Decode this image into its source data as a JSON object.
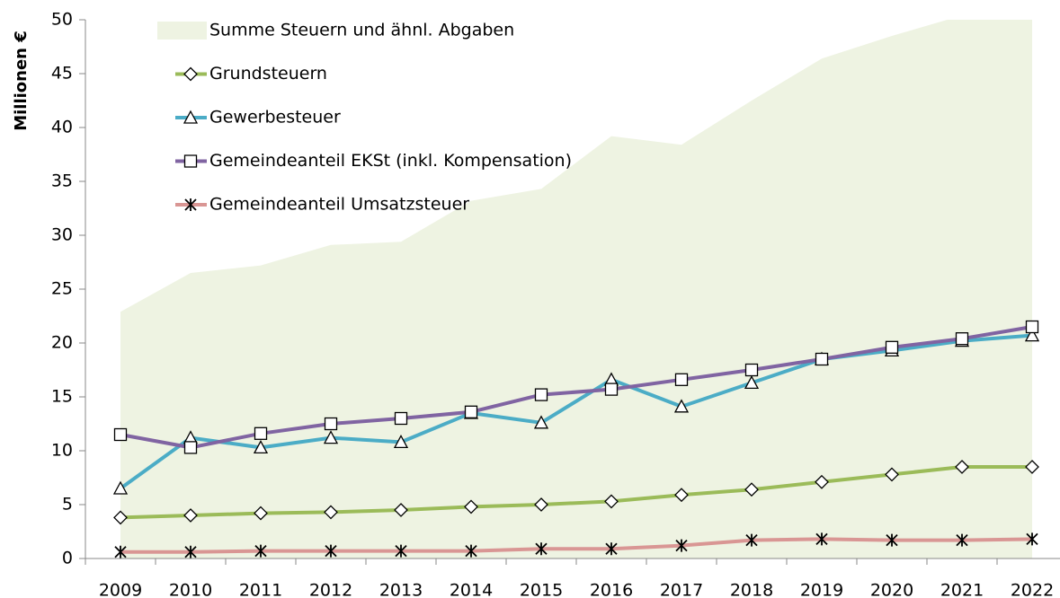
{
  "chart_data": {
    "type": "line",
    "y_label": "Millionen €",
    "categories": [
      "2009",
      "2010",
      "2011",
      "2012",
      "2013",
      "2014",
      "2015",
      "2016",
      "2017",
      "2018",
      "2019",
      "2020",
      "2021",
      "2022"
    ],
    "ylim": [
      0,
      50
    ],
    "yticks": [
      0,
      5,
      10,
      15,
      20,
      25,
      30,
      35,
      40,
      45,
      50
    ],
    "grid": false,
    "legend": "top-left",
    "series": [
      {
        "name": "Summe Steuern und ähnl. Abgaben",
        "kind": "area",
        "color": "#eef3e2",
        "values": [
          22.9,
          26.5,
          27.2,
          29.1,
          29.4,
          33.2,
          34.3,
          39.2,
          38.4,
          42.5,
          46.4,
          48.5,
          50.4,
          52
        ]
      },
      {
        "name": "Grundsteuern",
        "kind": "line",
        "marker": "diamond",
        "color": "#9bbb59",
        "values": [
          3.8,
          4.0,
          4.2,
          4.3,
          4.5,
          4.8,
          5.0,
          5.3,
          5.9,
          6.4,
          7.1,
          7.8,
          8.5,
          8.5
        ]
      },
      {
        "name": "Gewerbesteuer",
        "kind": "line",
        "marker": "triangle",
        "color": "#4bacc6",
        "values": [
          6.5,
          11.2,
          10.3,
          11.2,
          10.8,
          13.5,
          12.6,
          16.6,
          14.1,
          16.3,
          18.5,
          19.3,
          20.2,
          20.7
        ]
      },
      {
        "name": "Gemeindeanteil EKSt (inkl. Kompensation)",
        "kind": "line",
        "marker": "square",
        "color": "#8064a2",
        "values": [
          11.5,
          10.3,
          11.6,
          12.5,
          13.0,
          13.6,
          15.2,
          15.7,
          16.6,
          17.5,
          18.5,
          19.6,
          20.4,
          21.5
        ]
      },
      {
        "name": "Gemeindeanteil Umsatzsteuer",
        "kind": "line",
        "marker": "asterisk",
        "color": "#d99694",
        "values": [
          0.6,
          0.6,
          0.7,
          0.7,
          0.7,
          0.7,
          0.9,
          0.9,
          1.2,
          1.7,
          1.8,
          1.7,
          1.7,
          1.8
        ]
      }
    ]
  }
}
